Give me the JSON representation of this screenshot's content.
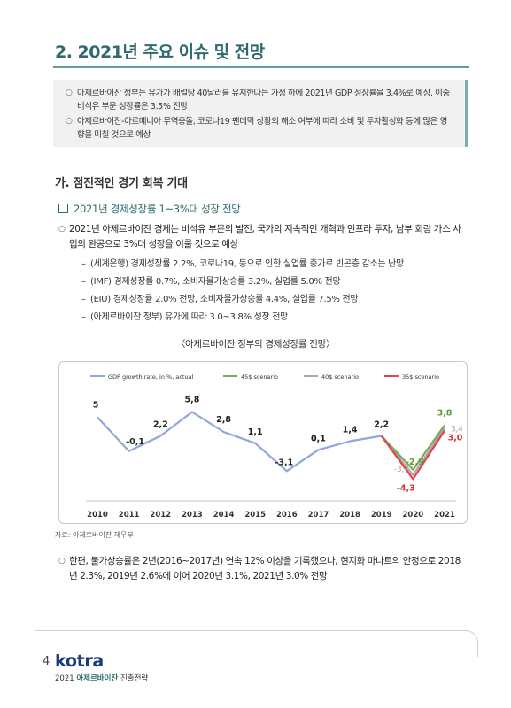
{
  "section_title": "2. 2021년 주요 이슈 및 전망",
  "summary": [
    "아제르바이잔 정부는 유가가 배럴당 40달러를 유지한다는 가정 하에 2021년 GDP 성장률을 3.4%로 예상. 이중 비석유 부문 성장률은 3.5% 전망",
    "아제르바이잔-아르메니아 무역충돌, 코로나19 팬데믹 상황의 해소 여부에 따라 소비 및 투자활성화 등에 많은 영향을 미칠 것으로 예상"
  ],
  "subheading": "가. 점진적인 경기 회복 기대",
  "square_heading": "2021년 경제성장률 1~3%대 성장 전망",
  "para1": "2021년 아제르바이잔 경제는 비석유 부문의 발전, 국가의 지속적인 개혁과 인프라 투자, 남부 회랑 가스 사업의 완공으로 3%대 성장을 이룰 것으로 예상",
  "dash_items": [
    "(세계은행) 경제성장률 2.2%, 코로나19, 등으로 인한 실업률 증가로 빈곤층 감소는 난망",
    "(IMF) 경제성장률 0.7%, 소비자물가상승률 3.2%, 실업률 5.0% 전망",
    "(EIU) 경제성장률 2.0% 전망, 소비자물가상승률 4.4%, 실업률 7.5% 전망",
    "(아제르바이잔 정부) 유가에 따라 3.0~3.8% 성장 전망"
  ],
  "chart_caption": "〈아제르바이잔 정부의 경제성장률 전망〉",
  "chart_data": {
    "type": "line",
    "x": [
      "2010",
      "2011",
      "2012",
      "2013",
      "2014",
      "2015",
      "2016",
      "2017",
      "2018",
      "2019",
      "2020",
      "2021"
    ],
    "ylim": [
      -6,
      8
    ],
    "grid": false,
    "legend_position": "top",
    "series": [
      {
        "name": "GDP growth rate, in %, actual",
        "color": "#8fa8d8",
        "values": [
          5,
          -0.1,
          2.2,
          5.8,
          2.8,
          1.1,
          -3.1,
          0.1,
          1.4,
          2.2,
          null,
          null
        ],
        "labels": [
          "5",
          "-0,1",
          "2,2",
          "5,8",
          "2,8",
          "1,1",
          "-3,1",
          "0,1",
          "1,4",
          "2,2",
          "",
          ""
        ]
      },
      {
        "name": "45$ scenario",
        "color": "#7aab5a",
        "values": [
          null,
          null,
          null,
          null,
          null,
          null,
          null,
          null,
          null,
          2.2,
          -2.9,
          3.8
        ],
        "labels": [
          "",
          "",
          "",
          "",
          "",
          "",
          "",
          "",
          "",
          "",
          "-2,9",
          "3,8"
        ]
      },
      {
        "name": "40$ scenario",
        "color": "#a9a9a9",
        "values": [
          null,
          null,
          null,
          null,
          null,
          null,
          null,
          null,
          null,
          2.2,
          -3.7,
          3.4
        ],
        "labels": [
          "",
          "",
          "",
          "",
          "",
          "",
          "",
          "",
          "",
          "",
          "-3,7",
          "3,4"
        ]
      },
      {
        "name": "35$ scenario",
        "color": "#e0454f",
        "values": [
          null,
          null,
          null,
          null,
          null,
          null,
          null,
          null,
          null,
          2.2,
          -4.3,
          3.0
        ],
        "labels": [
          "",
          "",
          "",
          "",
          "",
          "",
          "",
          "",
          "",
          "",
          "-4,3",
          "3,0"
        ]
      }
    ]
  },
  "source": "자료: 아제르바이잔 재무부",
  "para2": "한편, 물가상승률은 2년(2016~2017년) 연속 12% 이상을 기록했으나, 현지화 마나트의 안정으로 2018년 2.3%, 2019년 2.6%에 이어 2020년 3.1%, 2021년 3.0% 전망",
  "footer": {
    "page": "4",
    "logo": "kotra",
    "doc_year": "2021",
    "doc_country": "아제르바이잔",
    "doc_suffix": "진출전략"
  }
}
